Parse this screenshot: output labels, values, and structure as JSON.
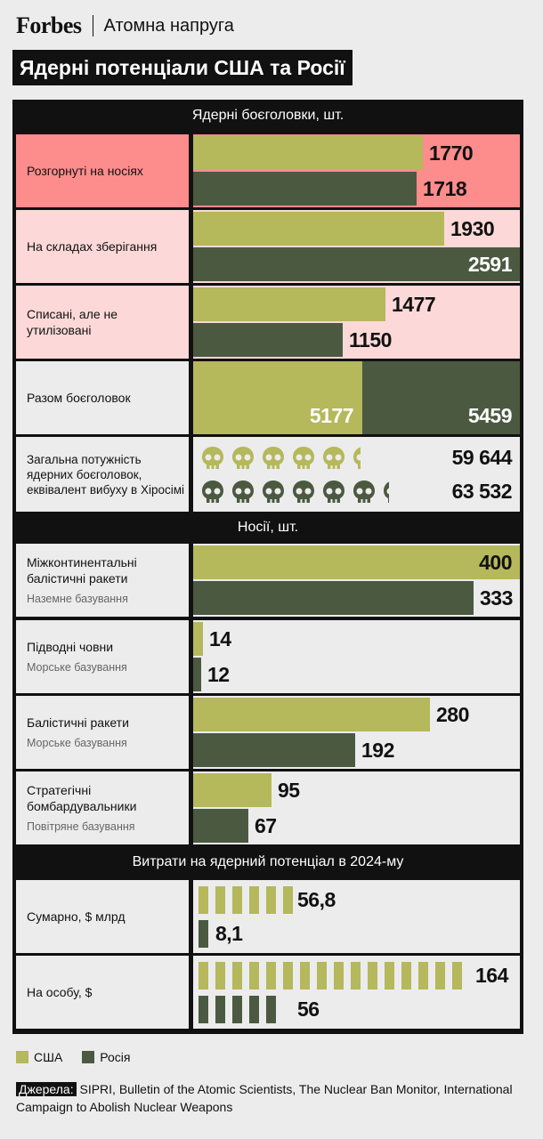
{
  "header": {
    "brand": "Forbes",
    "section": "Атомна напруга"
  },
  "title": "Ядерні потенціали США та Росії",
  "colors": {
    "usa": "#b5b85b",
    "russia": "#4b5941",
    "deployed_bg": "#fd8c8c",
    "stored_bg": "#fcd8d8",
    "dark": "#111111"
  },
  "sections": {
    "warheads": "Ядерні боєголовки, шт.",
    "carriers": "Носії, шт.",
    "spending": "Витрати на ядерний потенціал в 2024-му"
  },
  "warheads": {
    "deployed": {
      "label": "Розгорнуті на носіях",
      "usa": "1770",
      "russia": "1718"
    },
    "stored": {
      "label": "На складах зберігання",
      "usa": "1930",
      "russia": "2591"
    },
    "retired": {
      "label": "Списані, але не утилізовані",
      "usa": "1477",
      "russia": "1150"
    },
    "total": {
      "label": "Разом боєголовок",
      "usa": "5177",
      "russia": "5459"
    },
    "yield": {
      "label": "Загальна потужність ядерних боєголовок, еквівалент вибуху в Хіросімі",
      "usa": "59 644",
      "russia": "63 532"
    }
  },
  "carriers": {
    "icbm": {
      "label": "Міжконтинентальні балістичні ракети",
      "sub": "Наземне базування",
      "usa": "400",
      "russia": "333"
    },
    "subs": {
      "label": "Підводні човни",
      "sub": "Морське базування",
      "usa": "14",
      "russia": "12"
    },
    "slbm": {
      "label": "Балістичні ракети",
      "sub": "Морське базування",
      "usa": "280",
      "russia": "192"
    },
    "bombers": {
      "label": "Стратегічні бомбардувальники",
      "sub": "Повітряне базування",
      "usa": "95",
      "russia": "67"
    }
  },
  "spending": {
    "total": {
      "label": "Сумарно, $ млрд",
      "usa": "56,8",
      "russia": "8,1"
    },
    "per_capita": {
      "label": "На особу, $",
      "usa": "164",
      "russia": "56"
    }
  },
  "legend": {
    "usa": "США",
    "russia": "Росія"
  },
  "sources": {
    "label": "Джерела:",
    "text": " SIPRI, Bulletin of the Atomic Scientists, The Nuclear Ban Monitor, International Campaign to Abolish Nuclear Weapons"
  },
  "chart_data": {
    "type": "bar",
    "title": "Ядерні потенціали США та Росії",
    "groups": [
      {
        "title": "Ядерні боєголовки, шт.",
        "categories": [
          "Розгорнуті на носіях",
          "На складах зберігання",
          "Списані, але не утилізовані",
          "Разом боєголовок",
          "Загальна потужність ядерних боєголовок, еквівалент вибуху в Хіросімі"
        ],
        "series": [
          {
            "name": "США",
            "values": [
              1770,
              1930,
              1477,
              5177,
              59644
            ]
          },
          {
            "name": "Росія",
            "values": [
              1718,
              2591,
              1150,
              5459,
              63532
            ]
          }
        ]
      },
      {
        "title": "Носії, шт.",
        "categories": [
          "Міжконтинентальні балістичні ракети",
          "Підводні човни",
          "Балістичні ракети",
          "Стратегічні бомбардувальники"
        ],
        "series": [
          {
            "name": "США",
            "values": [
              400,
              14,
              280,
              95
            ]
          },
          {
            "name": "Росія",
            "values": [
              333,
              12,
              192,
              67
            ]
          }
        ]
      },
      {
        "title": "Витрати на ядерний потенціал в 2024-му",
        "categories": [
          "Сумарно, $ млрд",
          "На особу, $"
        ],
        "series": [
          {
            "name": "США",
            "values": [
              56.8,
              164
            ]
          },
          {
            "name": "Росія",
            "values": [
              8.1,
              56
            ]
          }
        ]
      }
    ],
    "legend": "bottom-left"
  }
}
